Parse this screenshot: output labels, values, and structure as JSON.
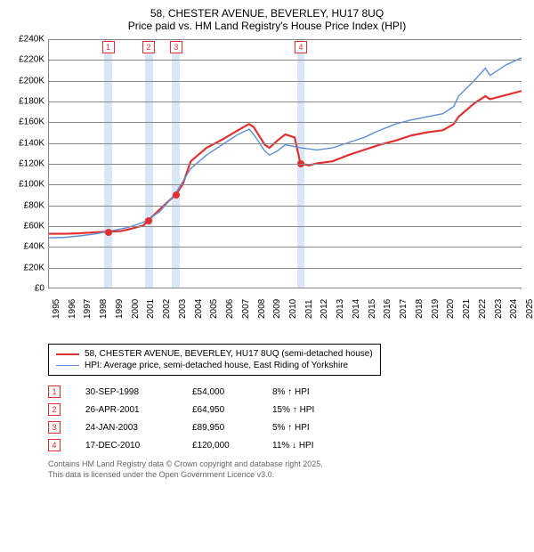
{
  "title": {
    "line1": "58, CHESTER AVENUE, BEVERLEY, HU17 8UQ",
    "line2": "Price paid vs. HM Land Registry's House Price Index (HPI)"
  },
  "chart": {
    "type": "line",
    "background_color": "#ffffff",
    "band_color": "#d9e6f7",
    "axis_color": "#888888",
    "label_fontsize": 10,
    "title_fontsize": 12,
    "x": {
      "min": 1995,
      "max": 2025,
      "ticks": [
        1995,
        1996,
        1997,
        1998,
        1999,
        2000,
        2001,
        2002,
        2003,
        2004,
        2005,
        2006,
        2007,
        2008,
        2009,
        2010,
        2011,
        2012,
        2013,
        2014,
        2015,
        2016,
        2017,
        2018,
        2019,
        2020,
        2021,
        2022,
        2023,
        2024,
        2025
      ]
    },
    "y": {
      "min": 0,
      "max": 240000,
      "ticks": [
        0,
        20000,
        40000,
        60000,
        80000,
        100000,
        120000,
        140000,
        160000,
        180000,
        200000,
        220000,
        240000
      ],
      "labels": [
        "£0",
        "£20K",
        "£40K",
        "£60K",
        "£80K",
        "£100K",
        "£120K",
        "£140K",
        "£160K",
        "£180K",
        "£200K",
        "£220K",
        "£240K"
      ]
    },
    "series": [
      {
        "name": "58, CHESTER AVENUE, BEVERLEY, HU17 8UQ (semi-detached house)",
        "color": "#e2302f",
        "width": 2.2,
        "points": [
          [
            1995,
            52000
          ],
          [
            1996,
            52000
          ],
          [
            1997,
            52500
          ],
          [
            1998,
            53500
          ],
          [
            1998.75,
            54000
          ],
          [
            1999.5,
            54500
          ],
          [
            2000,
            56000
          ],
          [
            2001,
            60000
          ],
          [
            2001.3,
            64950
          ],
          [
            2002,
            75000
          ],
          [
            2002.7,
            85000
          ],
          [
            2003.06,
            89950
          ],
          [
            2003.5,
            100000
          ],
          [
            2004,
            122000
          ],
          [
            2005,
            135000
          ],
          [
            2006,
            143000
          ],
          [
            2007,
            152000
          ],
          [
            2007.7,
            158000
          ],
          [
            2008,
            155000
          ],
          [
            2008.7,
            138000
          ],
          [
            2009,
            135000
          ],
          [
            2009.5,
            142000
          ],
          [
            2010,
            148000
          ],
          [
            2010.6,
            145000
          ],
          [
            2010.96,
            120000
          ],
          [
            2011.5,
            118000
          ],
          [
            2012,
            120000
          ],
          [
            2013,
            122000
          ],
          [
            2014,
            128000
          ],
          [
            2015,
            133000
          ],
          [
            2016,
            138000
          ],
          [
            2017,
            142000
          ],
          [
            2018,
            147000
          ],
          [
            2019,
            150000
          ],
          [
            2020,
            152000
          ],
          [
            2020.7,
            158000
          ],
          [
            2021,
            165000
          ],
          [
            2022,
            178000
          ],
          [
            2022.7,
            185000
          ],
          [
            2023,
            182000
          ],
          [
            2024,
            186000
          ],
          [
            2025,
            190000
          ]
        ]
      },
      {
        "name": "HPI: Average price, semi-detached house, East Riding of Yorkshire",
        "color": "#5b8fd6",
        "width": 1.4,
        "points": [
          [
            1995,
            48000
          ],
          [
            1996,
            48500
          ],
          [
            1997,
            50000
          ],
          [
            1998,
            52000
          ],
          [
            1999,
            55000
          ],
          [
            2000,
            58000
          ],
          [
            2001,
            63000
          ],
          [
            2002,
            73000
          ],
          [
            2003,
            90000
          ],
          [
            2004,
            115000
          ],
          [
            2005,
            128000
          ],
          [
            2006,
            138000
          ],
          [
            2007,
            148000
          ],
          [
            2007.7,
            153000
          ],
          [
            2008,
            148000
          ],
          [
            2008.7,
            132000
          ],
          [
            2009,
            128000
          ],
          [
            2009.5,
            132000
          ],
          [
            2010,
            138000
          ],
          [
            2011,
            135000
          ],
          [
            2012,
            133000
          ],
          [
            2013,
            135000
          ],
          [
            2014,
            140000
          ],
          [
            2015,
            145000
          ],
          [
            2016,
            152000
          ],
          [
            2017,
            158000
          ],
          [
            2018,
            162000
          ],
          [
            2019,
            165000
          ],
          [
            2020,
            168000
          ],
          [
            2020.7,
            175000
          ],
          [
            2021,
            185000
          ],
          [
            2022,
            200000
          ],
          [
            2022.7,
            212000
          ],
          [
            2023,
            205000
          ],
          [
            2024,
            215000
          ],
          [
            2025,
            222000
          ]
        ]
      }
    ],
    "markers": [
      {
        "n": "1",
        "x": 1998.75,
        "y": 54000
      },
      {
        "n": "2",
        "x": 2001.32,
        "y": 64950
      },
      {
        "n": "3",
        "x": 2003.06,
        "y": 89950
      },
      {
        "n": "4",
        "x": 2010.96,
        "y": 120000
      }
    ],
    "band_halfwidth_years": 0.25
  },
  "legend": {
    "items": [
      {
        "label": "58, CHESTER AVENUE, BEVERLEY, HU17 8UQ (semi-detached house)",
        "color": "#e2302f",
        "width": 2.2
      },
      {
        "label": "HPI: Average price, semi-detached house, East Riding of Yorkshire",
        "color": "#5b8fd6",
        "width": 1.4
      }
    ]
  },
  "transactions": [
    {
      "n": "1",
      "date": "30-SEP-1998",
      "price": "£54,000",
      "delta": "8% ↑ HPI"
    },
    {
      "n": "2",
      "date": "26-APR-2001",
      "price": "£64,950",
      "delta": "15% ↑ HPI"
    },
    {
      "n": "3",
      "date": "24-JAN-2003",
      "price": "£89,950",
      "delta": "5% ↑ HPI"
    },
    {
      "n": "4",
      "date": "17-DEC-2010",
      "price": "£120,000",
      "delta": "11% ↓ HPI"
    }
  ],
  "footer": {
    "line1": "Contains HM Land Registry data © Crown copyright and database right 2025.",
    "line2": "This data is licensed under the Open Government Licence v3.0."
  }
}
